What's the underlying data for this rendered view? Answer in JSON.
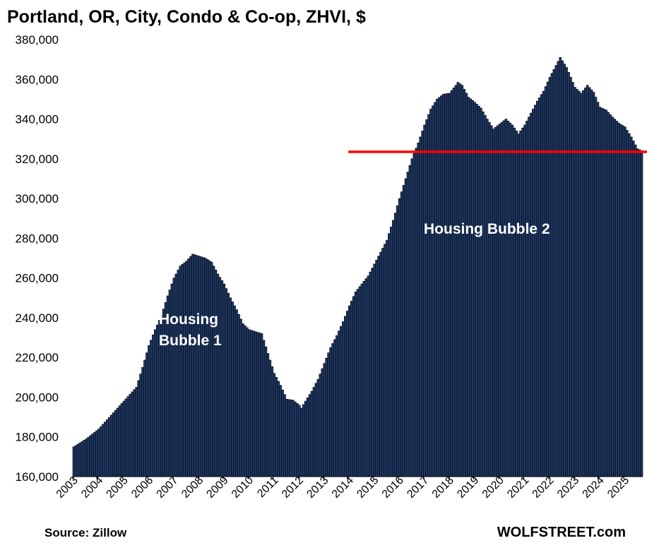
{
  "chart_data": {
    "type": "bar",
    "title": "Portland, OR, City, Condo & Co-op, ZHVI, $",
    "xlabel": "",
    "ylabel": "",
    "ylim": [
      160000,
      380000
    ],
    "y_ticks": [
      "160,000",
      "180,000",
      "200,000",
      "220,000",
      "240,000",
      "260,000",
      "280,000",
      "300,000",
      "320,000",
      "340,000",
      "360,000",
      "380,000"
    ],
    "x_ticks": [
      "2003",
      "2004",
      "2005",
      "2006",
      "2007",
      "2008",
      "2009",
      "2010",
      "2011",
      "2012",
      "2013",
      "2014",
      "2015",
      "2016",
      "2017",
      "2018",
      "2019",
      "2020",
      "2021",
      "2022",
      "2023",
      "2024",
      "2025"
    ],
    "bar_color": "#1f3864",
    "reference_line": {
      "value": 323500,
      "color": "#ff0000"
    },
    "annotations": [
      {
        "text": [
          "Housing",
          "Bubble 1"
        ]
      },
      {
        "text": [
          "Housing Bubble 2"
        ]
      }
    ],
    "anchors": [
      [
        "2003-01",
        175000
      ],
      [
        "2003-07",
        179000
      ],
      [
        "2004-01",
        184000
      ],
      [
        "2004-07",
        191000
      ],
      [
        "2005-01",
        198000
      ],
      [
        "2005-07",
        205000
      ],
      [
        "2005-10",
        215000
      ],
      [
        "2006-01",
        226000
      ],
      [
        "2006-04",
        234000
      ],
      [
        "2006-07",
        241000
      ],
      [
        "2006-10",
        251000
      ],
      [
        "2007-01",
        260000
      ],
      [
        "2007-04",
        266000
      ],
      [
        "2007-07",
        268500
      ],
      [
        "2007-10",
        272000
      ],
      [
        "2008-01",
        271000
      ],
      [
        "2008-04",
        270000
      ],
      [
        "2008-07",
        268000
      ],
      [
        "2008-10",
        262000
      ],
      [
        "2009-01",
        257000
      ],
      [
        "2009-04",
        250000
      ],
      [
        "2009-07",
        244000
      ],
      [
        "2009-10",
        237000
      ],
      [
        "2010-01",
        234000
      ],
      [
        "2010-04",
        233000
      ],
      [
        "2010-07",
        232000
      ],
      [
        "2010-10",
        222000
      ],
      [
        "2011-01",
        212000
      ],
      [
        "2011-04",
        206000
      ],
      [
        "2011-07",
        199000
      ],
      [
        "2011-10",
        198500
      ],
      [
        "2012-01",
        196000
      ],
      [
        "2012-02",
        194500
      ],
      [
        "2012-04",
        198000
      ],
      [
        "2012-07",
        203000
      ],
      [
        "2012-10",
        209000
      ],
      [
        "2013-01",
        217000
      ],
      [
        "2013-04",
        225000
      ],
      [
        "2013-07",
        231000
      ],
      [
        "2013-10",
        238000
      ],
      [
        "2014-01",
        246000
      ],
      [
        "2014-04",
        253000
      ],
      [
        "2014-07",
        257000
      ],
      [
        "2014-10",
        261000
      ],
      [
        "2015-01",
        267000
      ],
      [
        "2015-04",
        273000
      ],
      [
        "2015-07",
        279000
      ],
      [
        "2015-10",
        289000
      ],
      [
        "2016-01",
        300000
      ],
      [
        "2016-04",
        310000
      ],
      [
        "2016-07",
        320000
      ],
      [
        "2016-10",
        328000
      ],
      [
        "2017-01",
        337000
      ],
      [
        "2017-04",
        345000
      ],
      [
        "2017-07",
        350000
      ],
      [
        "2017-10",
        352500
      ],
      [
        "2018-01",
        353000
      ],
      [
        "2018-04",
        357000
      ],
      [
        "2018-05",
        358500
      ],
      [
        "2018-07",
        357000
      ],
      [
        "2018-10",
        351000
      ],
      [
        "2019-01",
        348500
      ],
      [
        "2019-04",
        345500
      ],
      [
        "2019-07",
        340000
      ],
      [
        "2019-10",
        335000
      ],
      [
        "2020-01",
        337500
      ],
      [
        "2020-04",
        340000
      ],
      [
        "2020-07",
        337000
      ],
      [
        "2020-10",
        332500
      ],
      [
        "2021-01",
        337000
      ],
      [
        "2021-04",
        343000
      ],
      [
        "2021-07",
        349000
      ],
      [
        "2021-10",
        354000
      ],
      [
        "2022-01",
        361000
      ],
      [
        "2022-04",
        367000
      ],
      [
        "2022-06",
        371000
      ],
      [
        "2022-09",
        366000
      ],
      [
        "2023-01",
        356000
      ],
      [
        "2023-04",
        353000
      ],
      [
        "2023-07",
        357000
      ],
      [
        "2023-10",
        353500
      ],
      [
        "2024-01",
        346000
      ],
      [
        "2024-04",
        344500
      ],
      [
        "2024-07",
        341000
      ],
      [
        "2024-10",
        338000
      ],
      [
        "2025-01",
        336000
      ],
      [
        "2025-04",
        331000
      ],
      [
        "2025-07",
        325000
      ],
      [
        "2025-09",
        324000
      ]
    ]
  },
  "footer": {
    "source": "Source: Zillow",
    "brand": "WOLFSTREET.com"
  }
}
